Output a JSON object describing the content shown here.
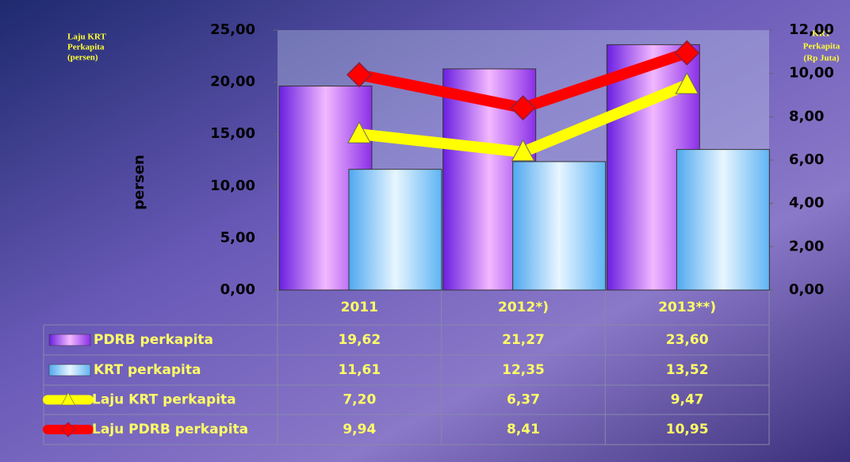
{
  "chart_data": {
    "type": "bar-line",
    "ylabel": "persen",
    "annotations": [
      "Laju KRT",
      "Perkapita",
      "(persen)",
      "KRT",
      "Perkapita",
      "(Rp Juta)"
    ],
    "categories": [
      "2011",
      "2012*)",
      "2013**)"
    ],
    "ylim": [
      0,
      25
    ],
    "yticks": [
      {
        "value": 0,
        "label": "0,00"
      },
      {
        "value": 5,
        "label": "5,00"
      },
      {
        "value": 10,
        "label": "10,00"
      },
      {
        "value": 15,
        "label": "15,00"
      },
      {
        "value": 20,
        "label": "20,00"
      },
      {
        "value": 25,
        "label": "25,00"
      }
    ],
    "y2lim": [
      0,
      12
    ],
    "y2ticks": [
      {
        "value": 0,
        "label": "0,00"
      },
      {
        "value": 2,
        "label": "2,00"
      },
      {
        "value": 4,
        "label": "4,00"
      },
      {
        "value": 6,
        "label": "6,00"
      },
      {
        "value": 8,
        "label": "8,00"
      },
      {
        "value": 10,
        "label": "10,00"
      },
      {
        "value": 12,
        "label": "12,00"
      }
    ],
    "series": [
      {
        "name": "PDRB perkapita",
        "kind": "bar",
        "color": "#9b4dff",
        "values": [
          19.62,
          21.27,
          23.6
        ],
        "value_labels": [
          "19,62",
          "21,27",
          "23,60"
        ]
      },
      {
        "name": "KRT perkapita",
        "kind": "bar",
        "color": "#a8d8f8",
        "values": [
          11.61,
          12.35,
          13.52
        ],
        "value_labels": [
          "11,61",
          "12,35",
          "13,52"
        ]
      },
      {
        "name": "Laju KRT perkapita",
        "kind": "line",
        "marker": "triangle",
        "axis": "y2",
        "color": "#ffff00",
        "values": [
          7.2,
          6.37,
          9.47
        ],
        "value_labels": [
          "7,20",
          "6,37",
          "9,47"
        ]
      },
      {
        "name": "Laju PDRB perkapita",
        "kind": "line",
        "marker": "diamond",
        "axis": "y2",
        "color": "#ff0000",
        "values": [
          9.94,
          8.41,
          10.95
        ],
        "value_labels": [
          "9,94",
          "8,41",
          "10,95"
        ]
      }
    ]
  }
}
